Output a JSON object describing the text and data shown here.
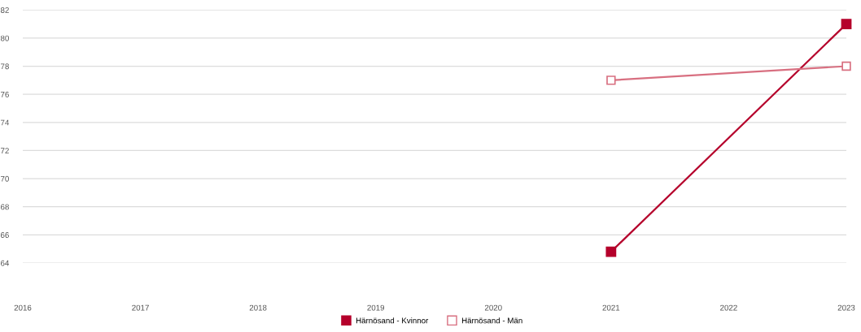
{
  "chart_data": {
    "type": "line",
    "categories": [
      "2016",
      "2017",
      "2018",
      "2019",
      "2020",
      "2021",
      "2022",
      "2023"
    ],
    "series": [
      {
        "name": "Härnösand - Kvinnor",
        "color": "#b5002b",
        "marker": "square",
        "values": [
          null,
          null,
          null,
          null,
          null,
          64.8,
          null,
          81.0
        ]
      },
      {
        "name": "Härnösand - Män",
        "color": "#d86f80",
        "marker": "square",
        "values": [
          null,
          null,
          null,
          null,
          null,
          77.0,
          null,
          78.0
        ]
      }
    ],
    "ylim": [
      64,
      82
    ],
    "yticks": [
      64,
      66,
      68,
      70,
      72,
      74,
      76,
      78,
      80,
      82
    ],
    "grid": "y",
    "legend": "bottom",
    "line_style": "solid"
  }
}
